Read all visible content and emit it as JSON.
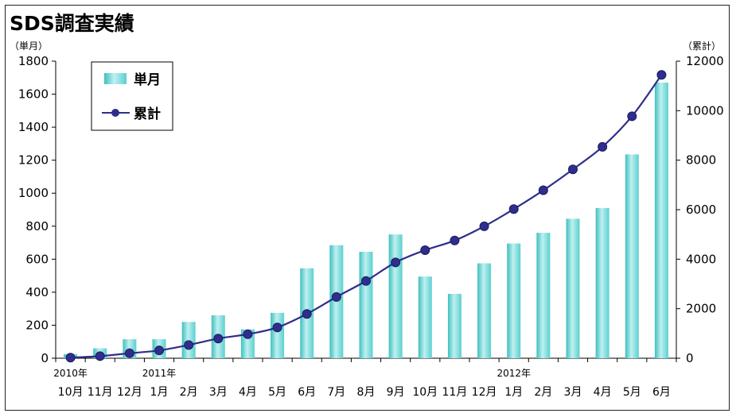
{
  "chart_data": {
    "type": "bar+line",
    "title": "SDS調査実績",
    "ylabel_left": "（単月）",
    "ylabel_right": "（累計）",
    "ylim_left": [
      0,
      1800
    ],
    "ylim_right": [
      0,
      12000
    ],
    "yticks_left": [
      "0",
      "200",
      "400",
      "600",
      "800",
      "1000",
      "1200",
      "1400",
      "1600",
      "1800"
    ],
    "yticks_right": [
      "0",
      "2000",
      "4000",
      "6000",
      "8000",
      "10000",
      "12000"
    ],
    "categories": [
      "10月",
      "11月",
      "12月",
      "1月",
      "2月",
      "3月",
      "4月",
      "5月",
      "6月",
      "7月",
      "8月",
      "9月",
      "10月",
      "11月",
      "12月",
      "1月",
      "2月",
      "3月",
      "4月",
      "5月",
      "6月"
    ],
    "year_labels": [
      {
        "index": 0,
        "label": "2010年"
      },
      {
        "index": 3,
        "label": "2011年"
      },
      {
        "index": 15,
        "label": "2012年"
      }
    ],
    "series": [
      {
        "name": "単月",
        "kind": "bar",
        "axis": "left",
        "color": "#5fd3d3",
        "values": [
          25,
          60,
          115,
          115,
          220,
          260,
          175,
          275,
          545,
          685,
          645,
          750,
          495,
          390,
          575,
          695,
          760,
          845,
          910,
          1235,
          1670
        ]
      },
      {
        "name": "累計",
        "kind": "line",
        "axis": "right",
        "color": "#2e2e8c",
        "values": [
          25,
          85,
          200,
          315,
          535,
          795,
          970,
          1245,
          1790,
          2475,
          3120,
          3870,
          4365,
          4755,
          5330,
          6025,
          6785,
          7630,
          8540,
          9775,
          11445
        ]
      }
    ],
    "legend": {
      "position": "top-left"
    },
    "grid": false
  }
}
